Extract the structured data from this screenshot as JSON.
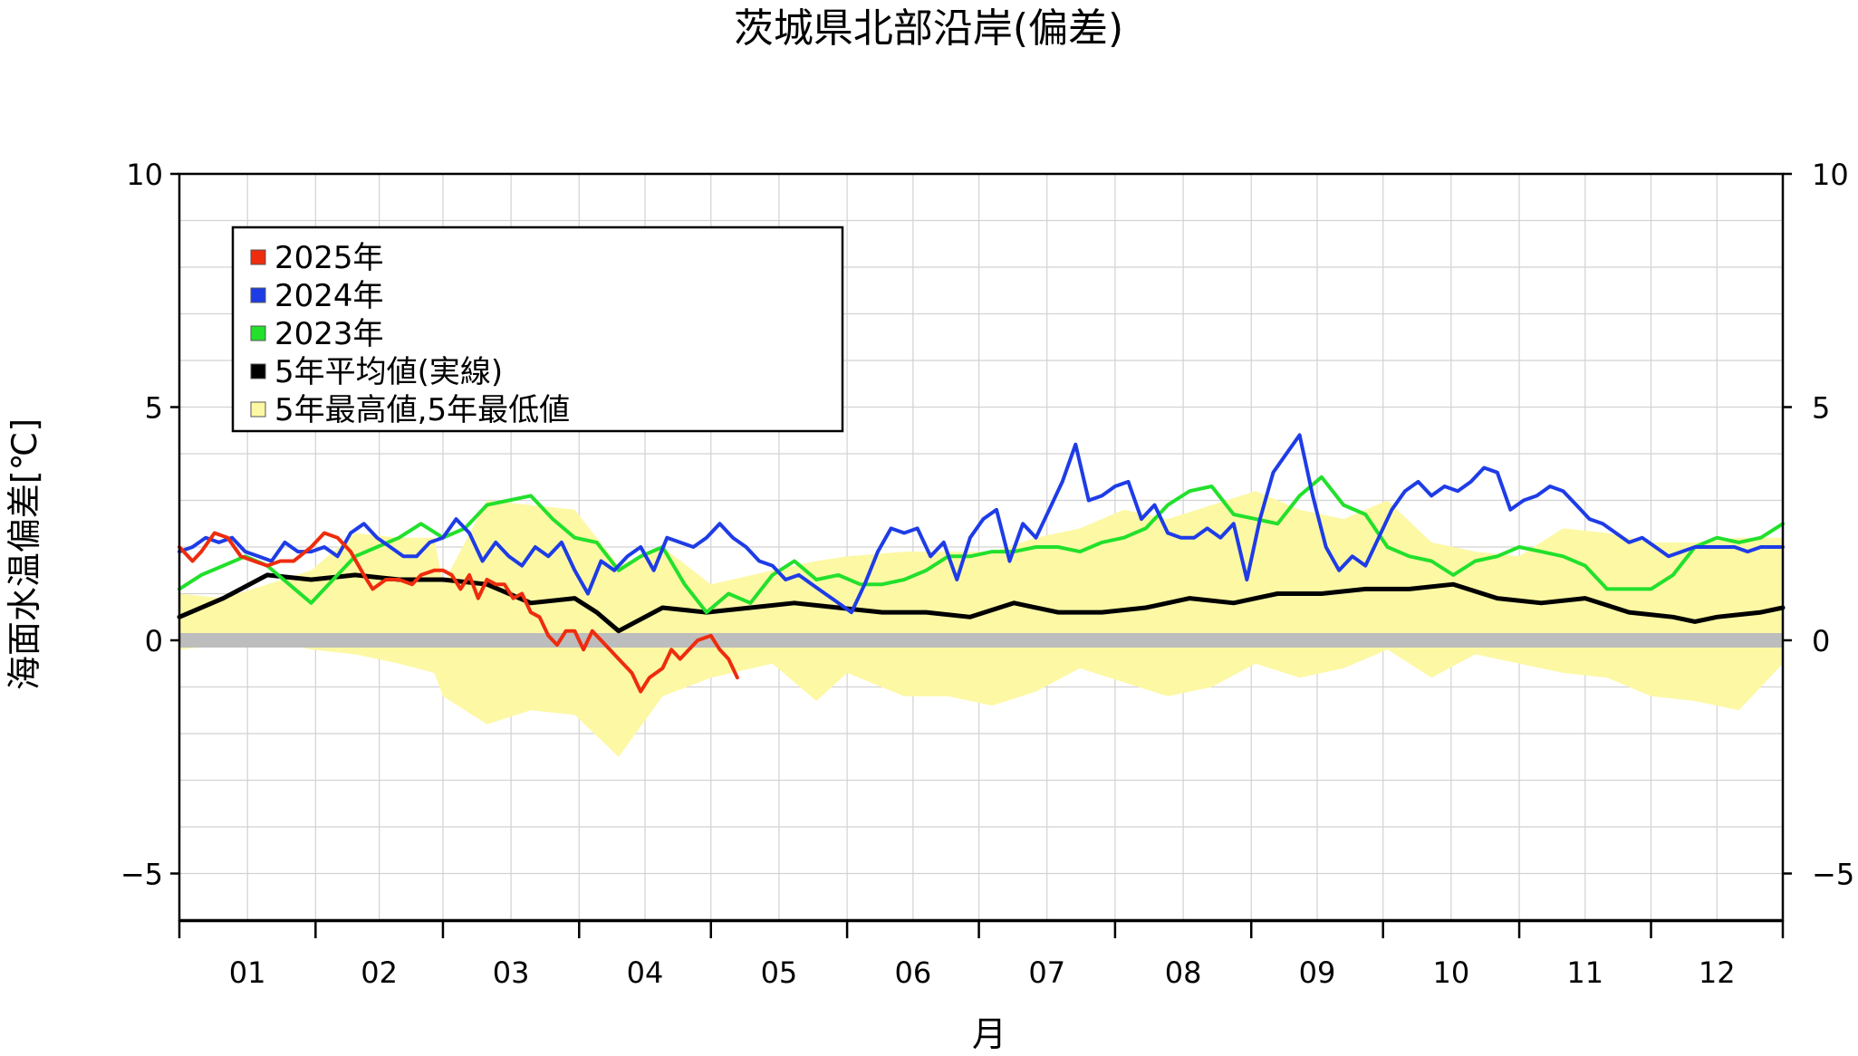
{
  "chart_data": {
    "type": "line",
    "title": "茨城県北部沿岸(偏差)",
    "xlabel": "月",
    "ylabel": "海面水温偏差[℃]",
    "ylim": [
      -6,
      10
    ],
    "xlim": [
      0,
      365
    ],
    "grid": true,
    "legend_position": "top-left",
    "month_labels": [
      "01",
      "02",
      "03",
      "04",
      "05",
      "06",
      "07",
      "08",
      "09",
      "10",
      "11",
      "12"
    ],
    "month_starts": [
      0,
      31,
      60,
      91,
      121,
      152,
      182,
      213,
      244,
      274,
      305,
      335,
      365
    ],
    "y_ticks": [
      {
        "value": 10,
        "label": "10"
      },
      {
        "value": 5,
        "label": "5"
      },
      {
        "value": 0,
        "label": "0"
      },
      {
        "value": -5,
        "label": "−5"
      }
    ],
    "zero_line_color": "#bdbdbd",
    "band": {
      "name": "5年最高値,5年最低値",
      "color": "#fdf8a4",
      "x": [
        0,
        10,
        20,
        30,
        40,
        50,
        58,
        60,
        70,
        80,
        90,
        100,
        110,
        121,
        135,
        145,
        152,
        165,
        175,
        185,
        195,
        205,
        215,
        225,
        235,
        245,
        255,
        265,
        275,
        285,
        295,
        305,
        315,
        325,
        335,
        345,
        355,
        365
      ],
      "upper": [
        1.0,
        0.9,
        1.2,
        1.5,
        2.3,
        2.2,
        2.2,
        1.2,
        3.0,
        2.9,
        2.8,
        1.6,
        2.0,
        1.2,
        1.5,
        1.7,
        1.8,
        1.9,
        1.9,
        1.9,
        2.2,
        2.4,
        2.8,
        2.6,
        2.9,
        3.2,
        2.8,
        2.6,
        3.0,
        2.1,
        1.9,
        1.8,
        2.4,
        2.3,
        2.1,
        2.1,
        2.2,
        2.2
      ],
      "lower": [
        -0.2,
        -0.1,
        0.0,
        -0.2,
        -0.3,
        -0.5,
        -0.7,
        -1.2,
        -1.8,
        -1.5,
        -1.6,
        -2.5,
        -1.2,
        -0.8,
        -0.5,
        -1.3,
        -0.7,
        -1.2,
        -1.2,
        -1.4,
        -1.1,
        -0.6,
        -0.9,
        -1.2,
        -1.0,
        -0.5,
        -0.8,
        -0.6,
        -0.2,
        -0.8,
        -0.3,
        -0.5,
        -0.7,
        -0.8,
        -1.2,
        -1.3,
        -1.5,
        -0.5
      ]
    },
    "series": [
      {
        "name": "2025年",
        "color": "#ee2c0e",
        "x": [
          0,
          3,
          5,
          8,
          11,
          14,
          17,
          20,
          23,
          26,
          30,
          33,
          36,
          39,
          42,
          44,
          47,
          50,
          53,
          55,
          58,
          60,
          62,
          64,
          66,
          68,
          70,
          72,
          74,
          76,
          78,
          80,
          82,
          84,
          86,
          88,
          90,
          92,
          94,
          96,
          98,
          100,
          103,
          105,
          107,
          110,
          112,
          114,
          116,
          118,
          121,
          123,
          125,
          127
        ],
        "y": [
          2.0,
          1.7,
          1.9,
          2.3,
          2.2,
          1.8,
          1.7,
          1.6,
          1.7,
          1.7,
          2.0,
          2.3,
          2.2,
          1.9,
          1.4,
          1.1,
          1.3,
          1.3,
          1.2,
          1.4,
          1.5,
          1.5,
          1.4,
          1.1,
          1.4,
          0.9,
          1.3,
          1.2,
          1.2,
          0.9,
          1.0,
          0.6,
          0.5,
          0.1,
          -0.1,
          0.2,
          0.2,
          -0.2,
          0.2,
          0.0,
          -0.2,
          -0.4,
          -0.7,
          -1.1,
          -0.8,
          -0.6,
          -0.2,
          -0.4,
          -0.2,
          0.0,
          0.1,
          -0.2,
          -0.4,
          -0.8
        ]
      },
      {
        "name": "2024年",
        "color": "#1e3ce6",
        "x": [
          0,
          3,
          6,
          9,
          12,
          15,
          18,
          21,
          24,
          27,
          30,
          33,
          36,
          39,
          42,
          45,
          48,
          51,
          54,
          57,
          60,
          63,
          66,
          69,
          72,
          75,
          78,
          81,
          84,
          87,
          90,
          93,
          96,
          99,
          102,
          105,
          108,
          111,
          114,
          117,
          120,
          123,
          126,
          129,
          132,
          135,
          138,
          141,
          144,
          147,
          150,
          153,
          156,
          159,
          162,
          165,
          168,
          171,
          174,
          177,
          180,
          183,
          186,
          189,
          192,
          195,
          198,
          201,
          204,
          207,
          210,
          213,
          216,
          219,
          222,
          225,
          228,
          231,
          234,
          237,
          240,
          243,
          246,
          249,
          252,
          255,
          258,
          261,
          264,
          267,
          270,
          273,
          276,
          279,
          282,
          285,
          288,
          291,
          294,
          297,
          300,
          303,
          306,
          309,
          312,
          315,
          318,
          321,
          324,
          327,
          330,
          333,
          336,
          339,
          342,
          345,
          348,
          351,
          354,
          357,
          360,
          363,
          365
        ],
        "y": [
          1.9,
          2.0,
          2.2,
          2.1,
          2.2,
          1.9,
          1.8,
          1.7,
          2.1,
          1.9,
          1.9,
          2.0,
          1.8,
          2.3,
          2.5,
          2.2,
          2.0,
          1.8,
          1.8,
          2.1,
          2.2,
          2.6,
          2.3,
          1.7,
          2.1,
          1.8,
          1.6,
          2.0,
          1.8,
          2.1,
          1.5,
          1.0,
          1.7,
          1.5,
          1.8,
          2.0,
          1.5,
          2.2,
          2.1,
          2.0,
          2.2,
          2.5,
          2.2,
          2.0,
          1.7,
          1.6,
          1.3,
          1.4,
          1.2,
          1.0,
          0.8,
          0.6,
          1.2,
          1.9,
          2.4,
          2.3,
          2.4,
          1.8,
          2.1,
          1.3,
          2.2,
          2.6,
          2.8,
          1.7,
          2.5,
          2.2,
          2.8,
          3.4,
          4.2,
          3.0,
          3.1,
          3.3,
          3.4,
          2.6,
          2.9,
          2.3,
          2.2,
          2.2,
          2.4,
          2.2,
          2.5,
          1.3,
          2.6,
          3.6,
          4.0,
          4.4,
          3.1,
          2.0,
          1.5,
          1.8,
          1.6,
          2.2,
          2.8,
          3.2,
          3.4,
          3.1,
          3.3,
          3.2,
          3.4,
          3.7,
          3.6,
          2.8,
          3.0,
          3.1,
          3.3,
          3.2,
          2.9,
          2.6,
          2.5,
          2.3,
          2.1,
          2.2,
          2.0,
          1.8,
          1.9,
          2.0,
          2.0,
          2.0,
          2.0,
          1.9,
          2.0,
          2.0,
          2.0
        ]
      },
      {
        "name": "2023年",
        "color": "#22e02c",
        "x": [
          0,
          5,
          10,
          15,
          20,
          25,
          30,
          35,
          40,
          45,
          50,
          55,
          60,
          65,
          70,
          75,
          80,
          85,
          90,
          95,
          100,
          105,
          110,
          115,
          120,
          125,
          130,
          135,
          140,
          145,
          150,
          155,
          160,
          165,
          170,
          175,
          180,
          185,
          190,
          195,
          200,
          205,
          210,
          215,
          220,
          225,
          230,
          235,
          240,
          245,
          250,
          255,
          260,
          265,
          270,
          275,
          280,
          285,
          290,
          295,
          300,
          305,
          310,
          315,
          320,
          325,
          330,
          335,
          340,
          345,
          350,
          355,
          360,
          365
        ],
        "y": [
          1.1,
          1.4,
          1.6,
          1.8,
          1.6,
          1.2,
          0.8,
          1.3,
          1.8,
          2.0,
          2.2,
          2.5,
          2.2,
          2.4,
          2.9,
          3.0,
          3.1,
          2.6,
          2.2,
          2.1,
          1.5,
          1.8,
          2.0,
          1.2,
          0.6,
          1.0,
          0.8,
          1.4,
          1.7,
          1.3,
          1.4,
          1.2,
          1.2,
          1.3,
          1.5,
          1.8,
          1.8,
          1.9,
          1.9,
          2.0,
          2.0,
          1.9,
          2.1,
          2.2,
          2.4,
          2.9,
          3.2,
          3.3,
          2.7,
          2.6,
          2.5,
          3.1,
          3.5,
          2.9,
          2.7,
          2.0,
          1.8,
          1.7,
          1.4,
          1.7,
          1.8,
          2.0,
          1.9,
          1.8,
          1.6,
          1.1,
          1.1,
          1.1,
          1.4,
          2.0,
          2.2,
          2.1,
          2.2,
          2.5
        ]
      },
      {
        "name": "5年平均値(実線)",
        "color": "#000000",
        "x": [
          0,
          10,
          20,
          30,
          40,
          50,
          60,
          70,
          80,
          90,
          95,
          100,
          110,
          120,
          130,
          140,
          150,
          160,
          170,
          180,
          190,
          200,
          210,
          220,
          230,
          240,
          250,
          260,
          270,
          280,
          290,
          300,
          310,
          320,
          330,
          340,
          345,
          350,
          360,
          365
        ],
        "y": [
          0.5,
          0.9,
          1.4,
          1.3,
          1.4,
          1.3,
          1.3,
          1.2,
          0.8,
          0.9,
          0.6,
          0.2,
          0.7,
          0.6,
          0.7,
          0.8,
          0.7,
          0.6,
          0.6,
          0.5,
          0.8,
          0.6,
          0.6,
          0.7,
          0.9,
          0.8,
          1.0,
          1.0,
          1.1,
          1.1,
          1.2,
          0.9,
          0.8,
          0.9,
          0.6,
          0.5,
          0.4,
          0.5,
          0.6,
          0.7
        ]
      }
    ]
  }
}
